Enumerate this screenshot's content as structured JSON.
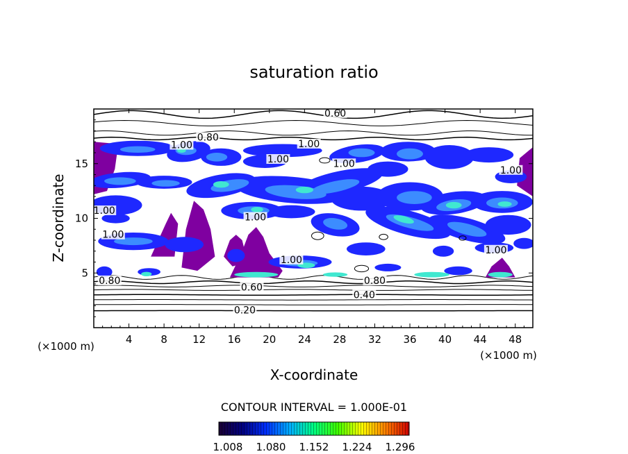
{
  "chart_data": {
    "type": "heatmap",
    "title": "saturation ratio",
    "xlabel": "X-coordinate",
    "ylabel": "Z-coordinate",
    "x_unit": "(×1000 m)",
    "z_unit": "(×1000 m)",
    "xlim": [
      0,
      50
    ],
    "ylim": [
      0,
      20
    ],
    "x_ticks": [
      4,
      8,
      12,
      16,
      20,
      24,
      28,
      32,
      36,
      40,
      44,
      48
    ],
    "x_tick_labels": [
      "4",
      "8",
      "12",
      "16",
      "20",
      "24",
      "28",
      "32",
      "36",
      "40",
      "44",
      "48"
    ],
    "y_ticks": [
      5,
      10,
      15
    ],
    "y_tick_labels": [
      "5",
      "10",
      "15"
    ],
    "contour_interval_text": "CONTOUR INTERVAL = 1.000E-01",
    "colorbar": {
      "tick_labels": [
        "1.008",
        "1.080",
        "1.152",
        "1.224",
        "1.296"
      ],
      "colors": [
        "#1a0033",
        "#000080",
        "#0030ff",
        "#00b0ff",
        "#00ff80",
        "#40ff00",
        "#ffff00",
        "#ff8000",
        "#d00000"
      ]
    },
    "shade_colors": {
      "purple": "#7f00a0",
      "blue": "#1e28ff",
      "lightblue": "#3c8cff",
      "cyan": "#40e8d0"
    },
    "contour_labels": [
      {
        "text": "0.60",
        "x": 27.5,
        "z": 19.5
      },
      {
        "text": "0.80",
        "x": 13.0,
        "z": 17.3
      },
      {
        "text": "1.00",
        "x": 10.0,
        "z": 16.6
      },
      {
        "text": "1.00",
        "x": 24.5,
        "z": 16.7
      },
      {
        "text": "1.00",
        "x": 21.0,
        "z": 15.3
      },
      {
        "text": "1.00",
        "x": 28.5,
        "z": 14.9
      },
      {
        "text": "1.00",
        "x": 47.5,
        "z": 14.3
      },
      {
        "text": "1.00",
        "x": 1.2,
        "z": 10.6
      },
      {
        "text": "1.00",
        "x": 2.2,
        "z": 8.4
      },
      {
        "text": "1.00",
        "x": 18.4,
        "z": 10.0
      },
      {
        "text": "1.00",
        "x": 22.5,
        "z": 6.1
      },
      {
        "text": "1.00",
        "x": 45.8,
        "z": 7.0
      },
      {
        "text": "0.80",
        "x": 1.8,
        "z": 4.2
      },
      {
        "text": "0.80",
        "x": 32.0,
        "z": 4.2
      },
      {
        "text": "0.60",
        "x": 18.0,
        "z": 3.6
      },
      {
        "text": "0.40",
        "x": 30.8,
        "z": 2.9
      },
      {
        "text": "0.20",
        "x": 17.2,
        "z": 1.5
      }
    ]
  }
}
